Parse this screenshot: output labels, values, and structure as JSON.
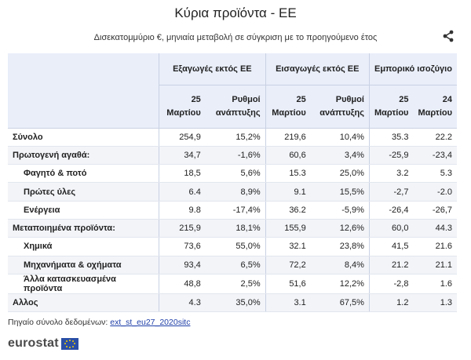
{
  "header": {
    "title": "Κύρια προϊόντα - ΕΕ",
    "subtitle": "Δισεκατομμύριο €, μηνιαία μεταβολή σε σύγκριση με το προηγούμενο έτος",
    "share_icon": "share-icon"
  },
  "table": {
    "groups": [
      "Εξαγωγές εκτός ΕΕ",
      "Εισαγωγές εκτός ΕΕ",
      "Εμπορικό ισοζύγιο"
    ],
    "subheaders": [
      "25 Μαρτίου",
      "Ρυθμοί ανάπτυξης",
      "25 Μαρτίου",
      "Ρυθμοί ανάπτυξης",
      "25 Μαρτίου",
      "24 Μαρτίου"
    ],
    "rows": [
      {
        "label": "Σύνολο",
        "values": [
          "254,9",
          "15,2%",
          "219,6",
          "10,4%",
          "35.3",
          "22.2"
        ]
      },
      {
        "label": "Πρωτογενή αγαθά:",
        "values": [
          "34,7",
          "-1,6%",
          "60,6",
          "3,4%",
          "-25,9",
          "-23,4"
        ]
      },
      {
        "label": "Φαγητό & ποτό",
        "values": [
          "18,5",
          "5,6%",
          "15.3",
          "25,0%",
          "3.2",
          "5.3"
        ]
      },
      {
        "label": "Πρώτες ύλες",
        "values": [
          "6.4",
          "8,9%",
          "9.1",
          "15,5%",
          "-2,7",
          "-2.0"
        ]
      },
      {
        "label": "Ενέργεια",
        "values": [
          "9.8",
          "-17,4%",
          "36.2",
          "-5,9%",
          "-26,4",
          "-26,7"
        ]
      },
      {
        "label": "Μεταποιημένα προϊόντα:",
        "values": [
          "215,9",
          "18,1%",
          "155,9",
          "12,6%",
          "60,0",
          "44.3"
        ]
      },
      {
        "label": "Χημικά",
        "values": [
          "73,6",
          "55,0%",
          "32.1",
          "23,8%",
          "41,5",
          "21.6"
        ]
      },
      {
        "label": "Μηχανήματα & οχήματα",
        "values": [
          "93,4",
          "6,5%",
          "72,2",
          "8,4%",
          "21.2",
          "21.1"
        ]
      },
      {
        "label": "Άλλα κατασκευασμένα προϊόντα",
        "values": [
          "48,8",
          "2,5%",
          "51,6",
          "12,2%",
          "-2,8",
          "1.6"
        ]
      },
      {
        "label": "Αλλος",
        "values": [
          "4.3",
          "35,0%",
          "3.1",
          "67,5%",
          "1.2",
          "1.3"
        ]
      }
    ]
  },
  "footer": {
    "source_label": "Πηγαίο σύνολο δεδομένων:",
    "source_link": "ext_st_eu27_2020sitc",
    "logo_text": "eurostat",
    "flag_color": "#2a4ea6"
  }
}
